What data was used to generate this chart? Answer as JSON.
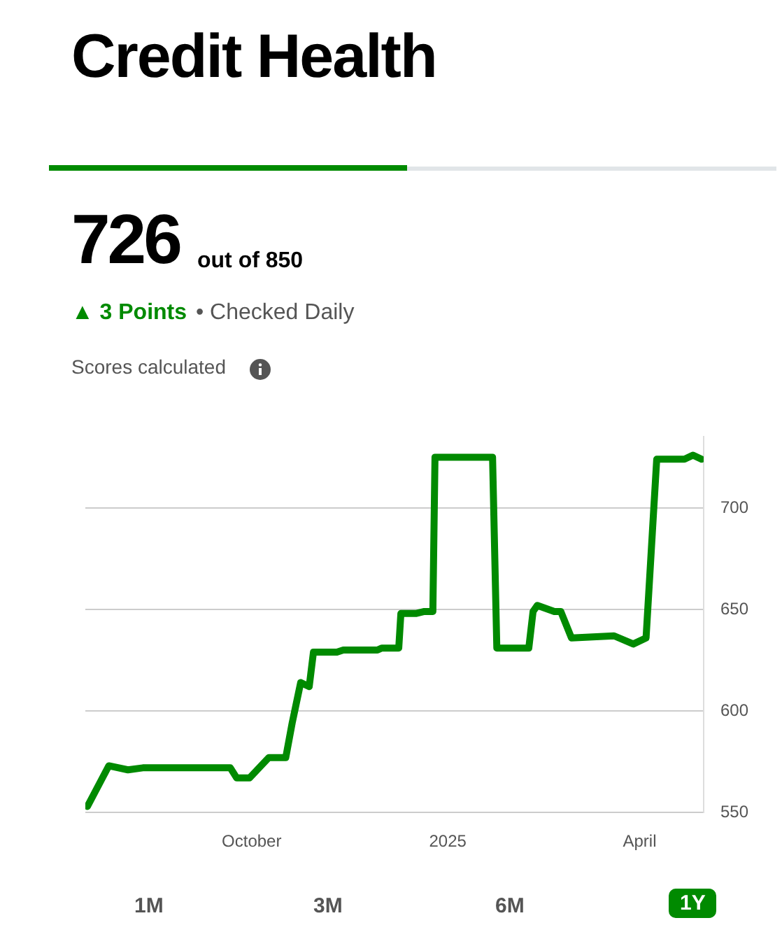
{
  "chart_data": {
    "type": "line",
    "title": "Credit Health",
    "annotations": [
      "726",
      "out of 850",
      "▲ 3 Points",
      "• Checked Daily",
      "Scores calculated",
      "1M",
      "3M",
      "6M",
      "1Y"
    ],
    "x": [
      "2024-07-16",
      "2024-07-26",
      "2024-08-04",
      "2024-08-11",
      "2024-09-21",
      "2024-09-24",
      "2024-09-30",
      "2024-10-09",
      "2024-10-17",
      "2024-10-20",
      "2024-10-24",
      "2024-10-28",
      "2024-10-30",
      "2024-11-10",
      "2024-11-13",
      "2024-11-29",
      "2024-12-01",
      "2024-12-09",
      "2024-12-10",
      "2024-12-17",
      "2024-12-21",
      "2024-12-25",
      "2024-12-26",
      "2025-01-22",
      "2025-01-24",
      "2025-02-08",
      "2025-02-10",
      "2025-02-12",
      "2025-02-20",
      "2025-02-23",
      "2025-02-28",
      "2025-03-20",
      "2025-03-29",
      "2025-04-04",
      "2025-04-09",
      "2025-04-22",
      "2025-04-26",
      "2025-04-30"
    ],
    "series": [
      {
        "color": "#008a00",
        "values": [
          553,
          573,
          571,
          572,
          572,
          567,
          567,
          577,
          577,
          594,
          614,
          612,
          629,
          629,
          630,
          630,
          631,
          631,
          648,
          648,
          649,
          649,
          725,
          725,
          631,
          631,
          649,
          652,
          649,
          649,
          636,
          637,
          633,
          636,
          724,
          724,
          726,
          724
        ]
      }
    ],
    "xlim": [
      "2024-07-15",
      "2025-05-01"
    ],
    "xticks": [
      {
        "value": "2024-10-01",
        "label": "October"
      },
      {
        "value": "2025-01-01",
        "label": "2025"
      },
      {
        "value": "2025-04-01",
        "label": "April"
      }
    ],
    "ylim": [
      550,
      735
    ],
    "yticks": [
      550,
      600,
      650,
      700
    ],
    "grid": "y",
    "legend": false,
    "marker": "none",
    "line_style": "solid"
  }
}
